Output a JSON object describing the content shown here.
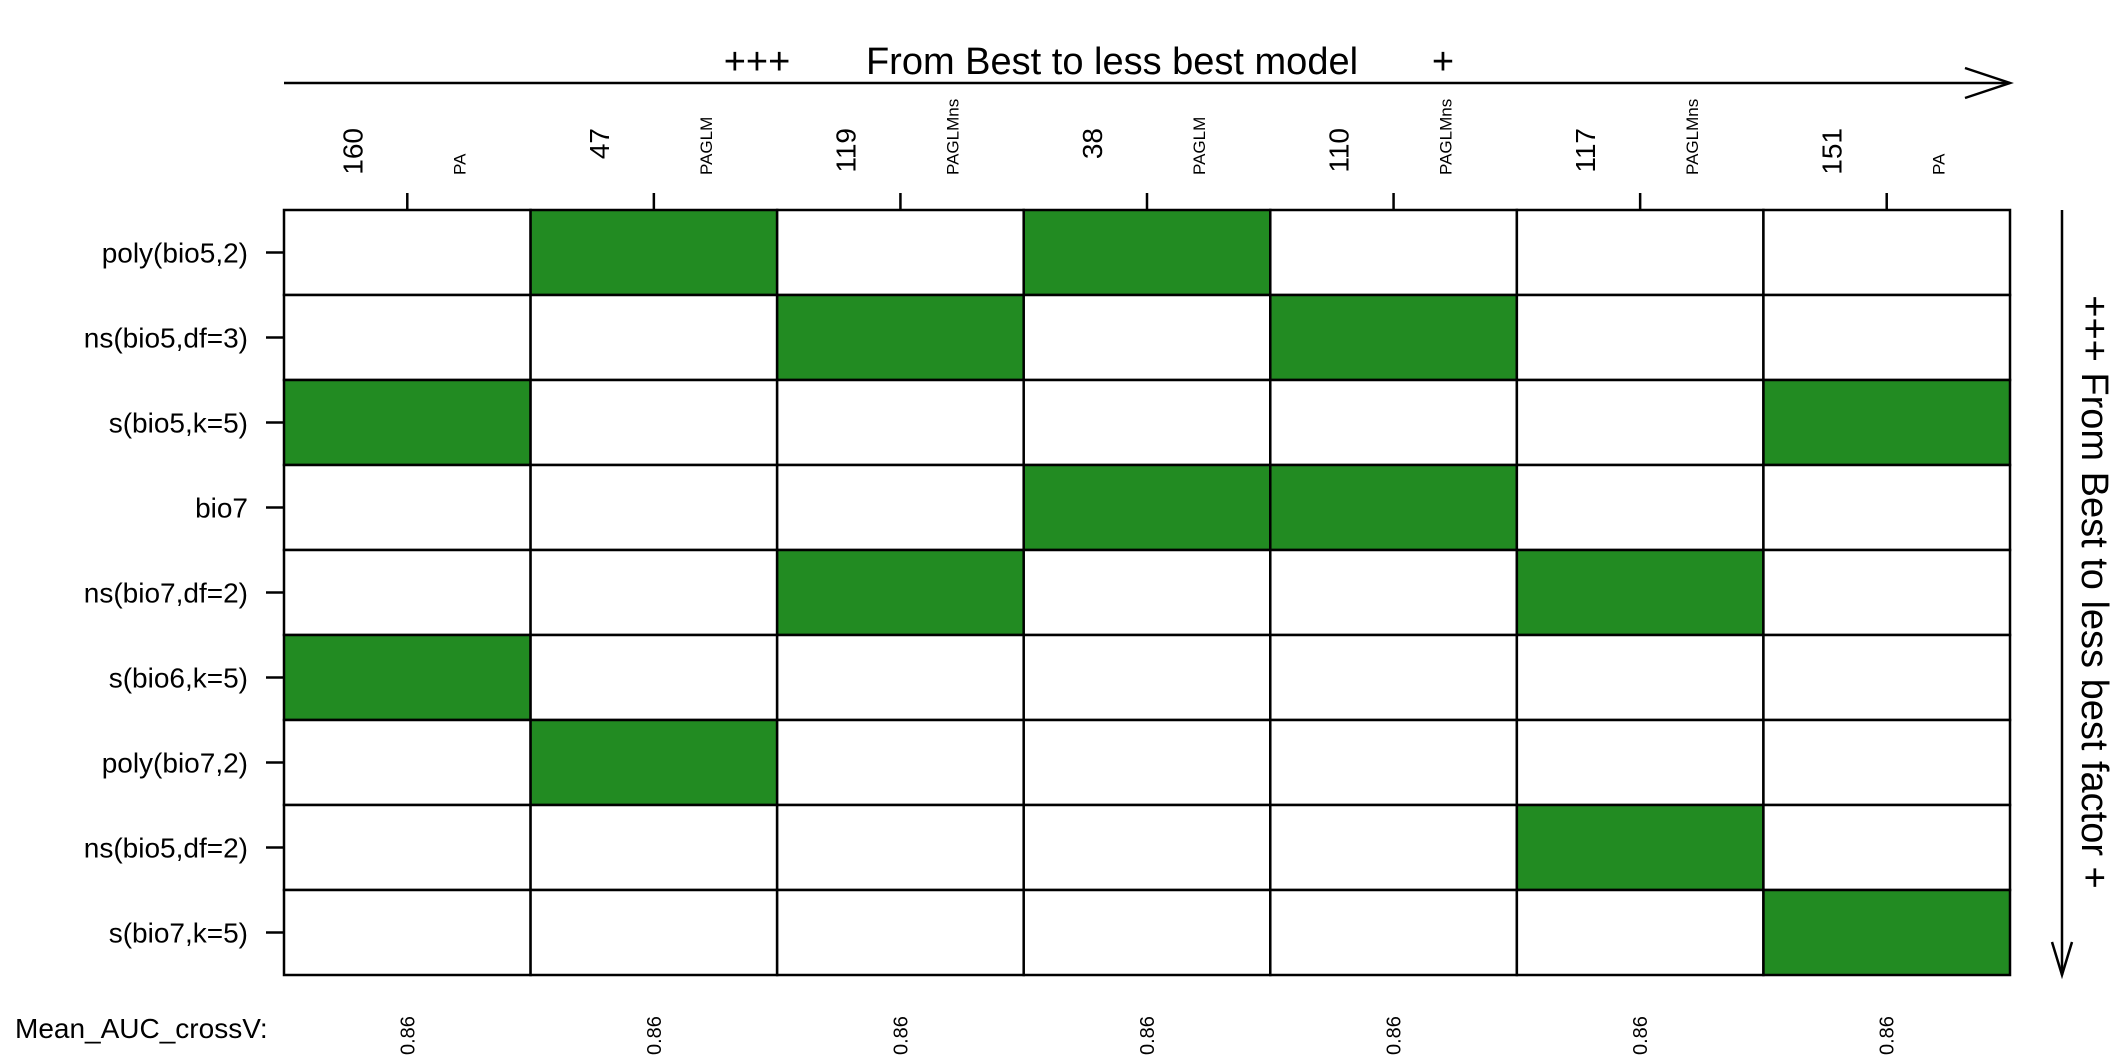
{
  "chart_data": {
    "type": "heatmap",
    "top_annotation": {
      "left_marker": "+++",
      "text": "From Best to less best model",
      "right_marker": "+"
    },
    "right_annotation": "+++ From Best to less best factor +",
    "columns": [
      {
        "id": "160",
        "type": "PA"
      },
      {
        "id": "47",
        "type": "PAGLM"
      },
      {
        "id": "119",
        "type": "PAGLMns"
      },
      {
        "id": "38",
        "type": "PAGLM"
      },
      {
        "id": "110",
        "type": "PAGLMns"
      },
      {
        "id": "117",
        "type": "PAGLMns"
      },
      {
        "id": "151",
        "type": "PA"
      }
    ],
    "rows": [
      "poly(bio5,2)",
      "ns(bio5,df=3)",
      "s(bio5,k=5)",
      "bio7",
      "ns(bio7,df=2)",
      "s(bio6,k=5)",
      "poly(bio7,2)",
      "ns(bio5,df=2)",
      "s(bio7,k=5)"
    ],
    "matrix": [
      [
        0,
        1,
        0,
        1,
        0,
        0,
        0
      ],
      [
        0,
        0,
        1,
        0,
        1,
        0,
        0
      ],
      [
        1,
        0,
        0,
        0,
        0,
        0,
        1
      ],
      [
        0,
        0,
        0,
        1,
        1,
        0,
        0
      ],
      [
        0,
        0,
        1,
        0,
        0,
        1,
        0
      ],
      [
        1,
        0,
        0,
        0,
        0,
        0,
        0
      ],
      [
        0,
        1,
        0,
        0,
        0,
        0,
        0
      ],
      [
        0,
        0,
        0,
        0,
        0,
        1,
        0
      ],
      [
        0,
        0,
        0,
        0,
        0,
        0,
        1
      ]
    ],
    "bottom_label": "Mean_AUC_crossV:",
    "mean_auc": [
      "0.86",
      "0.86",
      "0.86",
      "0.86",
      "0.86",
      "0.86",
      "0.86"
    ],
    "colors": {
      "filled": "#228b22",
      "empty": "#ffffff",
      "line": "#000000"
    }
  }
}
